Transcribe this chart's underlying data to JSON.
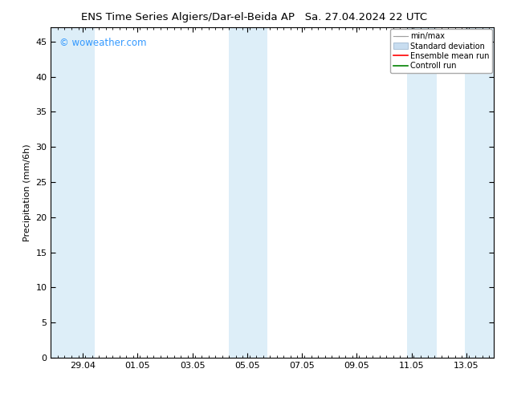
{
  "title_left": "ENS Time Series Algiers/Dar-el-Beida AP",
  "title_right": "Sa. 27.04.2024 22 UTC",
  "ylabel": "Precipitation (mm/6h)",
  "watermark": "© woweather.com",
  "bg_color": "#ffffff",
  "plot_bg_color": "#ffffff",
  "shaded_band_color": "#ddeef8",
  "ylim": [
    0,
    47
  ],
  "yticks": [
    0,
    5,
    10,
    15,
    20,
    25,
    30,
    35,
    40,
    45
  ],
  "xlim_start": 0.0,
  "xlim_end": 16.1667,
  "xtick_labels": [
    "29.04",
    "01.05",
    "03.05",
    "05.05",
    "07.05",
    "09.05",
    "11.05",
    "13.05"
  ],
  "xtick_positions": [
    1.1667,
    3.1667,
    5.1667,
    7.1667,
    9.1667,
    11.1667,
    13.1667,
    15.1667
  ],
  "shaded_regions": [
    {
      "x_start": 0.0,
      "x_end": 1.6
    },
    {
      "x_start": 6.5,
      "x_end": 7.9
    },
    {
      "x_start": 13.0,
      "x_end": 14.1
    },
    {
      "x_start": 15.1,
      "x_end": 16.1667
    }
  ],
  "legend_entries": [
    {
      "label": "min/max",
      "color": "#a0a0a0",
      "type": "errorbar"
    },
    {
      "label": "Standard deviation",
      "color": "#c8ddf0",
      "type": "fill"
    },
    {
      "label": "Ensemble mean run",
      "color": "#ff0000",
      "type": "line"
    },
    {
      "label": "Controll run",
      "color": "#008000",
      "type": "line"
    }
  ],
  "font_size_title": 9.5,
  "font_size_labels": 8,
  "font_size_ticks": 8,
  "font_size_watermark": 8.5,
  "font_size_legend": 7,
  "watermark_color": "#3399ff",
  "axis_color": "#000000",
  "tick_color": "#000000"
}
